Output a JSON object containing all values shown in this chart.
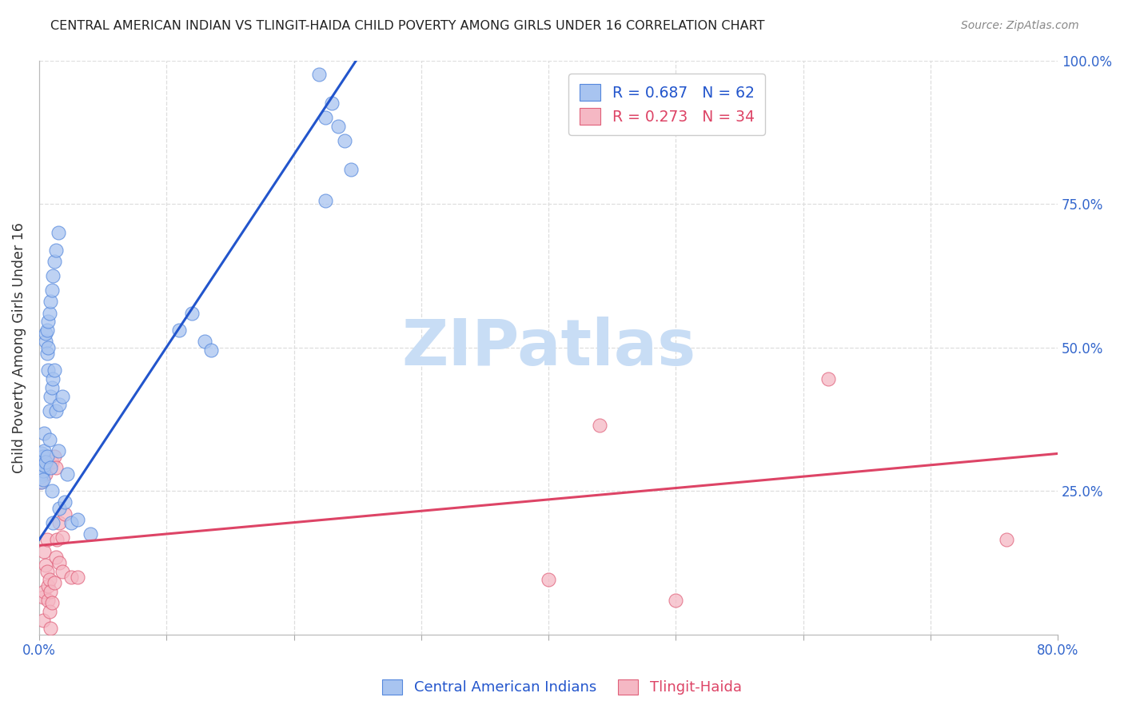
{
  "title": "CENTRAL AMERICAN INDIAN VS TLINGIT-HAIDA CHILD POVERTY AMONG GIRLS UNDER 16 CORRELATION CHART",
  "source": "Source: ZipAtlas.com",
  "ylabel": "Child Poverty Among Girls Under 16",
  "xlim": [
    0.0,
    0.8
  ],
  "ylim": [
    0.0,
    1.0
  ],
  "xticks": [
    0.0,
    0.1,
    0.2,
    0.3,
    0.4,
    0.5,
    0.6,
    0.7,
    0.8
  ],
  "yticks": [
    0.0,
    0.25,
    0.5,
    0.75,
    1.0
  ],
  "xticklabels": [
    "0.0%",
    "",
    "",
    "",
    "",
    "",
    "",
    "",
    "80.0%"
  ],
  "yticklabels_right": [
    "",
    "25.0%",
    "50.0%",
    "75.0%",
    "100.0%"
  ],
  "blue_color": "#a8c4f0",
  "pink_color": "#f5b8c4",
  "blue_edge_color": "#5588dd",
  "pink_edge_color": "#e0607a",
  "blue_line_color": "#2255cc",
  "pink_line_color": "#dd4466",
  "blue_scatter": [
    [
      0.001,
      0.285
    ],
    [
      0.001,
      0.305
    ],
    [
      0.001,
      0.295
    ],
    [
      0.001,
      0.275
    ],
    [
      0.002,
      0.315
    ],
    [
      0.002,
      0.295
    ],
    [
      0.002,
      0.28
    ],
    [
      0.002,
      0.265
    ],
    [
      0.003,
      0.3
    ],
    [
      0.003,
      0.285
    ],
    [
      0.003,
      0.27
    ],
    [
      0.003,
      0.31
    ],
    [
      0.004,
      0.32
    ],
    [
      0.004,
      0.35
    ],
    [
      0.004,
      0.295
    ],
    [
      0.005,
      0.51
    ],
    [
      0.005,
      0.525
    ],
    [
      0.005,
      0.3
    ],
    [
      0.006,
      0.53
    ],
    [
      0.006,
      0.49
    ],
    [
      0.006,
      0.31
    ],
    [
      0.007,
      0.545
    ],
    [
      0.007,
      0.5
    ],
    [
      0.007,
      0.46
    ],
    [
      0.008,
      0.56
    ],
    [
      0.008,
      0.39
    ],
    [
      0.008,
      0.34
    ],
    [
      0.009,
      0.58
    ],
    [
      0.009,
      0.415
    ],
    [
      0.009,
      0.29
    ],
    [
      0.01,
      0.6
    ],
    [
      0.01,
      0.43
    ],
    [
      0.01,
      0.25
    ],
    [
      0.011,
      0.625
    ],
    [
      0.011,
      0.445
    ],
    [
      0.011,
      0.195
    ],
    [
      0.012,
      0.65
    ],
    [
      0.012,
      0.46
    ],
    [
      0.013,
      0.67
    ],
    [
      0.013,
      0.39
    ],
    [
      0.015,
      0.7
    ],
    [
      0.015,
      0.32
    ],
    [
      0.016,
      0.4
    ],
    [
      0.016,
      0.22
    ],
    [
      0.018,
      0.415
    ],
    [
      0.02,
      0.23
    ],
    [
      0.022,
      0.28
    ],
    [
      0.025,
      0.195
    ],
    [
      0.03,
      0.2
    ],
    [
      0.04,
      0.175
    ],
    [
      0.11,
      0.53
    ],
    [
      0.12,
      0.56
    ],
    [
      0.13,
      0.51
    ],
    [
      0.135,
      0.495
    ],
    [
      0.22,
      0.975
    ],
    [
      0.225,
      0.9
    ],
    [
      0.225,
      0.755
    ],
    [
      0.23,
      0.925
    ],
    [
      0.235,
      0.885
    ],
    [
      0.24,
      0.86
    ],
    [
      0.245,
      0.81
    ]
  ],
  "pink_scatter": [
    [
      0.001,
      0.285
    ],
    [
      0.001,
      0.265
    ],
    [
      0.002,
      0.295
    ],
    [
      0.003,
      0.065
    ],
    [
      0.003,
      0.025
    ],
    [
      0.004,
      0.145
    ],
    [
      0.004,
      0.075
    ],
    [
      0.005,
      0.12
    ],
    [
      0.005,
      0.28
    ],
    [
      0.006,
      0.165
    ],
    [
      0.006,
      0.11
    ],
    [
      0.007,
      0.085
    ],
    [
      0.007,
      0.06
    ],
    [
      0.008,
      0.095
    ],
    [
      0.008,
      0.04
    ],
    [
      0.009,
      0.075
    ],
    [
      0.009,
      0.01
    ],
    [
      0.01,
      0.3
    ],
    [
      0.01,
      0.055
    ],
    [
      0.012,
      0.31
    ],
    [
      0.012,
      0.09
    ],
    [
      0.013,
      0.29
    ],
    [
      0.013,
      0.135
    ],
    [
      0.014,
      0.165
    ],
    [
      0.016,
      0.195
    ],
    [
      0.016,
      0.125
    ],
    [
      0.018,
      0.17
    ],
    [
      0.018,
      0.11
    ],
    [
      0.02,
      0.21
    ],
    [
      0.025,
      0.1
    ],
    [
      0.03,
      0.1
    ],
    [
      0.4,
      0.095
    ],
    [
      0.44,
      0.365
    ],
    [
      0.5,
      0.06
    ],
    [
      0.62,
      0.445
    ],
    [
      0.76,
      0.165
    ]
  ],
  "blue_line_x": [
    0.0,
    0.255
  ],
  "blue_line_y": [
    0.165,
    1.02
  ],
  "pink_line_x": [
    0.0,
    0.8
  ],
  "pink_line_y": [
    0.155,
    0.315
  ],
  "watermark": "ZIPatlas",
  "watermark_color": "#c8ddf5",
  "background_color": "#ffffff",
  "grid_color": "#dedede",
  "grid_style": "--"
}
